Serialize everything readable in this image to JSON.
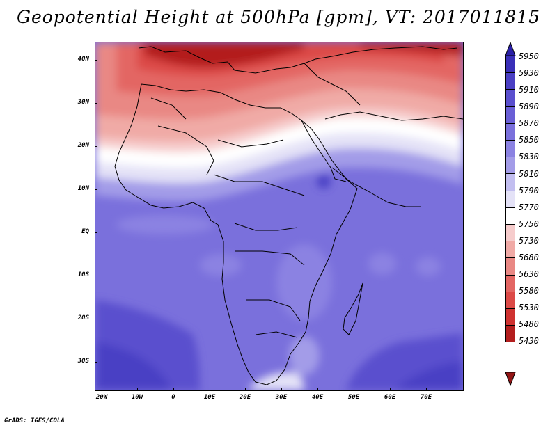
{
  "title": "Geopotential Height at 500hPa [gpm], VT: 2017011815",
  "credit": "GrADS: IGES/COLA",
  "axes": {
    "lat_labels": [
      "40N",
      "30N",
      "20N",
      "10N",
      "EQ",
      "10S",
      "20S",
      "30S"
    ],
    "lon_labels": [
      "20W",
      "10W",
      "0",
      "10E",
      "20E",
      "30E",
      "40E",
      "50E",
      "60E",
      "70E"
    ]
  },
  "map": {
    "region": "Africa",
    "projection": "latitude-longitude",
    "lat_range": [
      -37,
      44
    ],
    "lon_range": [
      -22,
      80
    ]
  },
  "colorbar": {
    "levels": [
      "5950",
      "5930",
      "5910",
      "5890",
      "5870",
      "5850",
      "5830",
      "5810",
      "5790",
      "5770",
      "5750",
      "5730",
      "5680",
      "5630",
      "5580",
      "5530",
      "5480",
      "5430"
    ],
    "colors": [
      "#2a1fa8",
      "#3a2fb8",
      "#4a3fc4",
      "#5a4fce",
      "#6a5fd6",
      "#7a70dc",
      "#8b82e2",
      "#a39ce8",
      "#c2bef0",
      "#e4e2f7",
      "#ffffff",
      "#f6cccc",
      "#f0aaa6",
      "#e98884",
      "#e36663",
      "#dc4a47",
      "#cf3230",
      "#b31e1e",
      "#931515"
    ]
  }
}
